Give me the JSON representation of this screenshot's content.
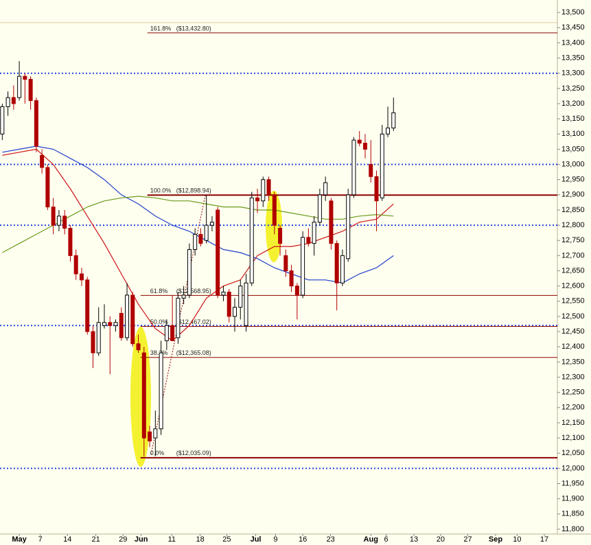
{
  "chart_data": {
    "type": "candlestick",
    "xlim": [
      -0.4,
      97.9
    ],
    "ylim": [
      11784,
      13541
    ],
    "xticks": [
      {
        "value": 3.0,
        "label": "May"
      },
      {
        "value": 6.7,
        "label": "7"
      },
      {
        "value": 11.5,
        "label": "14"
      },
      {
        "value": 16.5,
        "label": "21"
      },
      {
        "value": 21.3,
        "label": "29"
      },
      {
        "value": 24.5,
        "label": "Jun"
      },
      {
        "value": 29.9,
        "label": "11"
      },
      {
        "value": 34.9,
        "label": "18"
      },
      {
        "value": 39.6,
        "label": "25"
      },
      {
        "value": 44.7,
        "label": "Jul"
      },
      {
        "value": 48.2,
        "label": "9"
      },
      {
        "value": 53.0,
        "label": "16"
      },
      {
        "value": 57.9,
        "label": "23"
      },
      {
        "value": 65.0,
        "label": "Aug"
      },
      {
        "value": 67.7,
        "label": "6"
      },
      {
        "value": 72.6,
        "label": "13"
      },
      {
        "value": 77.3,
        "label": "20"
      },
      {
        "value": 82.1,
        "label": "27"
      },
      {
        "value": 87.0,
        "label": "Sep"
      },
      {
        "value": 90.8,
        "label": "10"
      },
      {
        "value": 95.6,
        "label": "17"
      }
    ],
    "yticks": [
      {
        "value": 11800,
        "label": "11,800"
      },
      {
        "value": 11850,
        "label": "11,850"
      },
      {
        "value": 11900,
        "label": "11,900"
      },
      {
        "value": 11950,
        "label": "11,950"
      },
      {
        "value": 12000,
        "label": "12,000"
      },
      {
        "value": 12050,
        "label": "12,050"
      },
      {
        "value": 12100,
        "label": "12,100"
      },
      {
        "value": 12150,
        "label": "12,150"
      },
      {
        "value": 12200,
        "label": "12,200"
      },
      {
        "value": 12250,
        "label": "12,250"
      },
      {
        "value": 12300,
        "label": "12,300"
      },
      {
        "value": 12350,
        "label": "12,350"
      },
      {
        "value": 12400,
        "label": "12,400"
      },
      {
        "value": 12450,
        "label": "12,450"
      },
      {
        "value": 12500,
        "label": "12,500"
      },
      {
        "value": 12550,
        "label": "12,550"
      },
      {
        "value": 12600,
        "label": "12,600"
      },
      {
        "value": 12650,
        "label": "12,650"
      },
      {
        "value": 12700,
        "label": "12,700"
      },
      {
        "value": 12750,
        "label": "12,750"
      },
      {
        "value": 12800,
        "label": "12,800"
      },
      {
        "value": 12850,
        "label": "12,850"
      },
      {
        "value": 12900,
        "label": "12,900"
      },
      {
        "value": 12950,
        "label": "12,950"
      },
      {
        "value": 13000,
        "label": "13,000"
      },
      {
        "value": 13050,
        "label": "13,050"
      },
      {
        "value": 13100,
        "label": "13,100"
      },
      {
        "value": 13150,
        "label": "13,150"
      },
      {
        "value": 13200,
        "label": "13,200"
      },
      {
        "value": 13250,
        "label": "13,250"
      },
      {
        "value": 13300,
        "label": "13,300"
      },
      {
        "value": 13350,
        "label": "13,350"
      },
      {
        "value": 13400,
        "label": "13,400"
      },
      {
        "value": 13450,
        "label": "13,450"
      },
      {
        "value": 13500,
        "label": "13,500"
      }
    ],
    "candles": {
      "up_color": "#ffffff",
      "down_color": "#b00000",
      "x": [
        0,
        1,
        2,
        3,
        4,
        5,
        6,
        7,
        8,
        9,
        10,
        11,
        12,
        13,
        14,
        15,
        16,
        17,
        18,
        19,
        20,
        21,
        22,
        23,
        24,
        25,
        26,
        27,
        28,
        29,
        30,
        31,
        32,
        33,
        34,
        35,
        36,
        37,
        38,
        39,
        40,
        41,
        42,
        43,
        44,
        45,
        46,
        47,
        48,
        49,
        50,
        51,
        52,
        53,
        54,
        55,
        56,
        57,
        58,
        59,
        60,
        61,
        62,
        63,
        64,
        65,
        66,
        67,
        68,
        69
      ],
      "open": [
        13100,
        13190,
        13220,
        13220,
        13290,
        13280,
        13210,
        13030,
        12990,
        12860,
        12800,
        12830,
        12790,
        12700,
        12640,
        12620,
        12450,
        12380,
        12470,
        12480,
        12470,
        12510,
        12430,
        12570,
        12410,
        12380,
        12120,
        12100,
        12130,
        12420,
        12470,
        12430,
        12560,
        12570,
        12720,
        12770,
        12750,
        12800,
        12850,
        12570,
        12580,
        12500,
        12530,
        12470,
        12610,
        12890,
        12880,
        12950,
        12900,
        12790,
        12700,
        12650,
        12600,
        12570,
        12760,
        12740,
        12810,
        12900,
        12880,
        12740,
        12610,
        12690,
        12900,
        13080,
        13070,
        13000,
        12960,
        12890,
        13100,
        13120
      ],
      "high": [
        13200,
        13240,
        13260,
        13340,
        13300,
        13290,
        13220,
        13050,
        13000,
        12890,
        12850,
        12850,
        12800,
        12720,
        12660,
        12630,
        12470,
        12530,
        12540,
        12500,
        12490,
        12530,
        12610,
        12580,
        12440,
        12400,
        12140,
        12190,
        12420,
        12490,
        12570,
        12580,
        12600,
        12740,
        12790,
        12790,
        12900,
        12830,
        12860,
        12600,
        12590,
        12560,
        12620,
        12640,
        12910,
        12920,
        12960,
        12960,
        12910,
        12800,
        12720,
        12670,
        12610,
        12780,
        12790,
        12830,
        12920,
        12960,
        12890,
        12750,
        12720,
        12920,
        13090,
        13110,
        13100,
        13080,
        12980,
        13130,
        13190,
        13220
      ],
      "low": [
        13080,
        13160,
        13180,
        13210,
        13200,
        13180,
        13040,
        12970,
        12850,
        12770,
        12780,
        12770,
        12680,
        12620,
        12600,
        12440,
        12330,
        12370,
        12460,
        12310,
        12450,
        12420,
        12420,
        12400,
        12380,
        12040,
        12070,
        12040,
        12110,
        12390,
        12440,
        12410,
        12540,
        12560,
        12700,
        12730,
        12740,
        12780,
        12560,
        12550,
        12480,
        12450,
        12490,
        12450,
        12600,
        12840,
        12860,
        12880,
        12770,
        12700,
        12630,
        12580,
        12490,
        12560,
        12730,
        12700,
        12800,
        12880,
        12720,
        12520,
        12600,
        12680,
        12890,
        13060,
        13020,
        12940,
        12780,
        12880,
        13090,
        13110
      ],
      "close": [
        13190,
        13220,
        13200,
        13290,
        13280,
        13210,
        13060,
        12990,
        12860,
        12800,
        12830,
        12790,
        12700,
        12640,
        12620,
        12450,
        12380,
        12480,
        12480,
        12470,
        12480,
        12430,
        12570,
        12410,
        12390,
        12100,
        12090,
        12130,
        12380,
        12470,
        12420,
        12560,
        12570,
        12720,
        12770,
        12740,
        12800,
        12810,
        12570,
        12580,
        12500,
        12530,
        12600,
        12610,
        12890,
        12880,
        12950,
        12900,
        12800,
        12740,
        12650,
        12600,
        12570,
        12760,
        12740,
        12810,
        12900,
        12940,
        12740,
        12610,
        12700,
        12900,
        13080,
        13070,
        13050,
        12960,
        12880,
        13100,
        13120,
        13170
      ]
    },
    "moving_averages": [
      {
        "color": "#cc1111",
        "x": [
          0,
          3,
          6,
          9,
          12,
          15,
          18,
          21,
          24,
          27,
          30,
          33,
          36,
          39,
          42,
          45,
          48,
          51,
          54,
          57,
          60,
          63,
          66,
          69
        ],
        "values": [
          13030,
          13040,
          13050,
          13000,
          12920,
          12830,
          12740,
          12640,
          12540,
          12460,
          12420,
          12470,
          12560,
          12600,
          12620,
          12700,
          12730,
          12730,
          12740,
          12760,
          12780,
          12810,
          12820,
          12870
        ]
      },
      {
        "color": "#1f3fcc",
        "x": [
          0,
          3,
          6,
          9,
          12,
          15,
          18,
          21,
          24,
          27,
          30,
          33,
          36,
          39,
          42,
          45,
          48,
          51,
          54,
          57,
          60,
          63,
          66,
          69
        ],
        "values": [
          13040,
          13050,
          13060,
          13050,
          13020,
          12990,
          12950,
          12900,
          12870,
          12830,
          12800,
          12780,
          12750,
          12720,
          12710,
          12690,
          12660,
          12640,
          12620,
          12620,
          12610,
          12640,
          12660,
          12700
        ]
      },
      {
        "color": "#6a9a1a",
        "x": [
          0,
          3,
          6,
          9,
          12,
          15,
          18,
          21,
          24,
          27,
          30,
          33,
          36,
          39,
          42,
          45,
          48,
          51,
          54,
          57,
          60,
          63,
          66,
          69
        ],
        "values": [
          12710,
          12740,
          12770,
          12800,
          12830,
          12860,
          12880,
          12890,
          12895,
          12890,
          12880,
          12880,
          12870,
          12860,
          12860,
          12850,
          12850,
          12840,
          12830,
          12820,
          12820,
          12830,
          12835,
          12830
        ]
      }
    ],
    "levels": {
      "color": "#2244dd",
      "values": [
        13300,
        13000,
        12800,
        12470,
        12000
      ]
    },
    "fibonacci": {
      "color": "#8b0000",
      "start": 25.6,
      "lines": [
        {
          "value": 13432.8,
          "ratio": "161.8%",
          "price": "($13,432.80)"
        },
        {
          "value": 12898.94,
          "ratio": "100.0%",
          "price": "($12,898.94)"
        },
        {
          "value": 12568.95,
          "ratio": "61.8%",
          "price": "($12,568.95)"
        },
        {
          "value": 12467.02,
          "ratio": "50.0%",
          "price": "($12,467.02)"
        },
        {
          "value": 12365.08,
          "ratio": "38.2%",
          "price": "($12,365.08)"
        },
        {
          "value": 12035.09,
          "ratio": "0.0%",
          "price": "($12,035.09)"
        }
      ]
    }
  }
}
